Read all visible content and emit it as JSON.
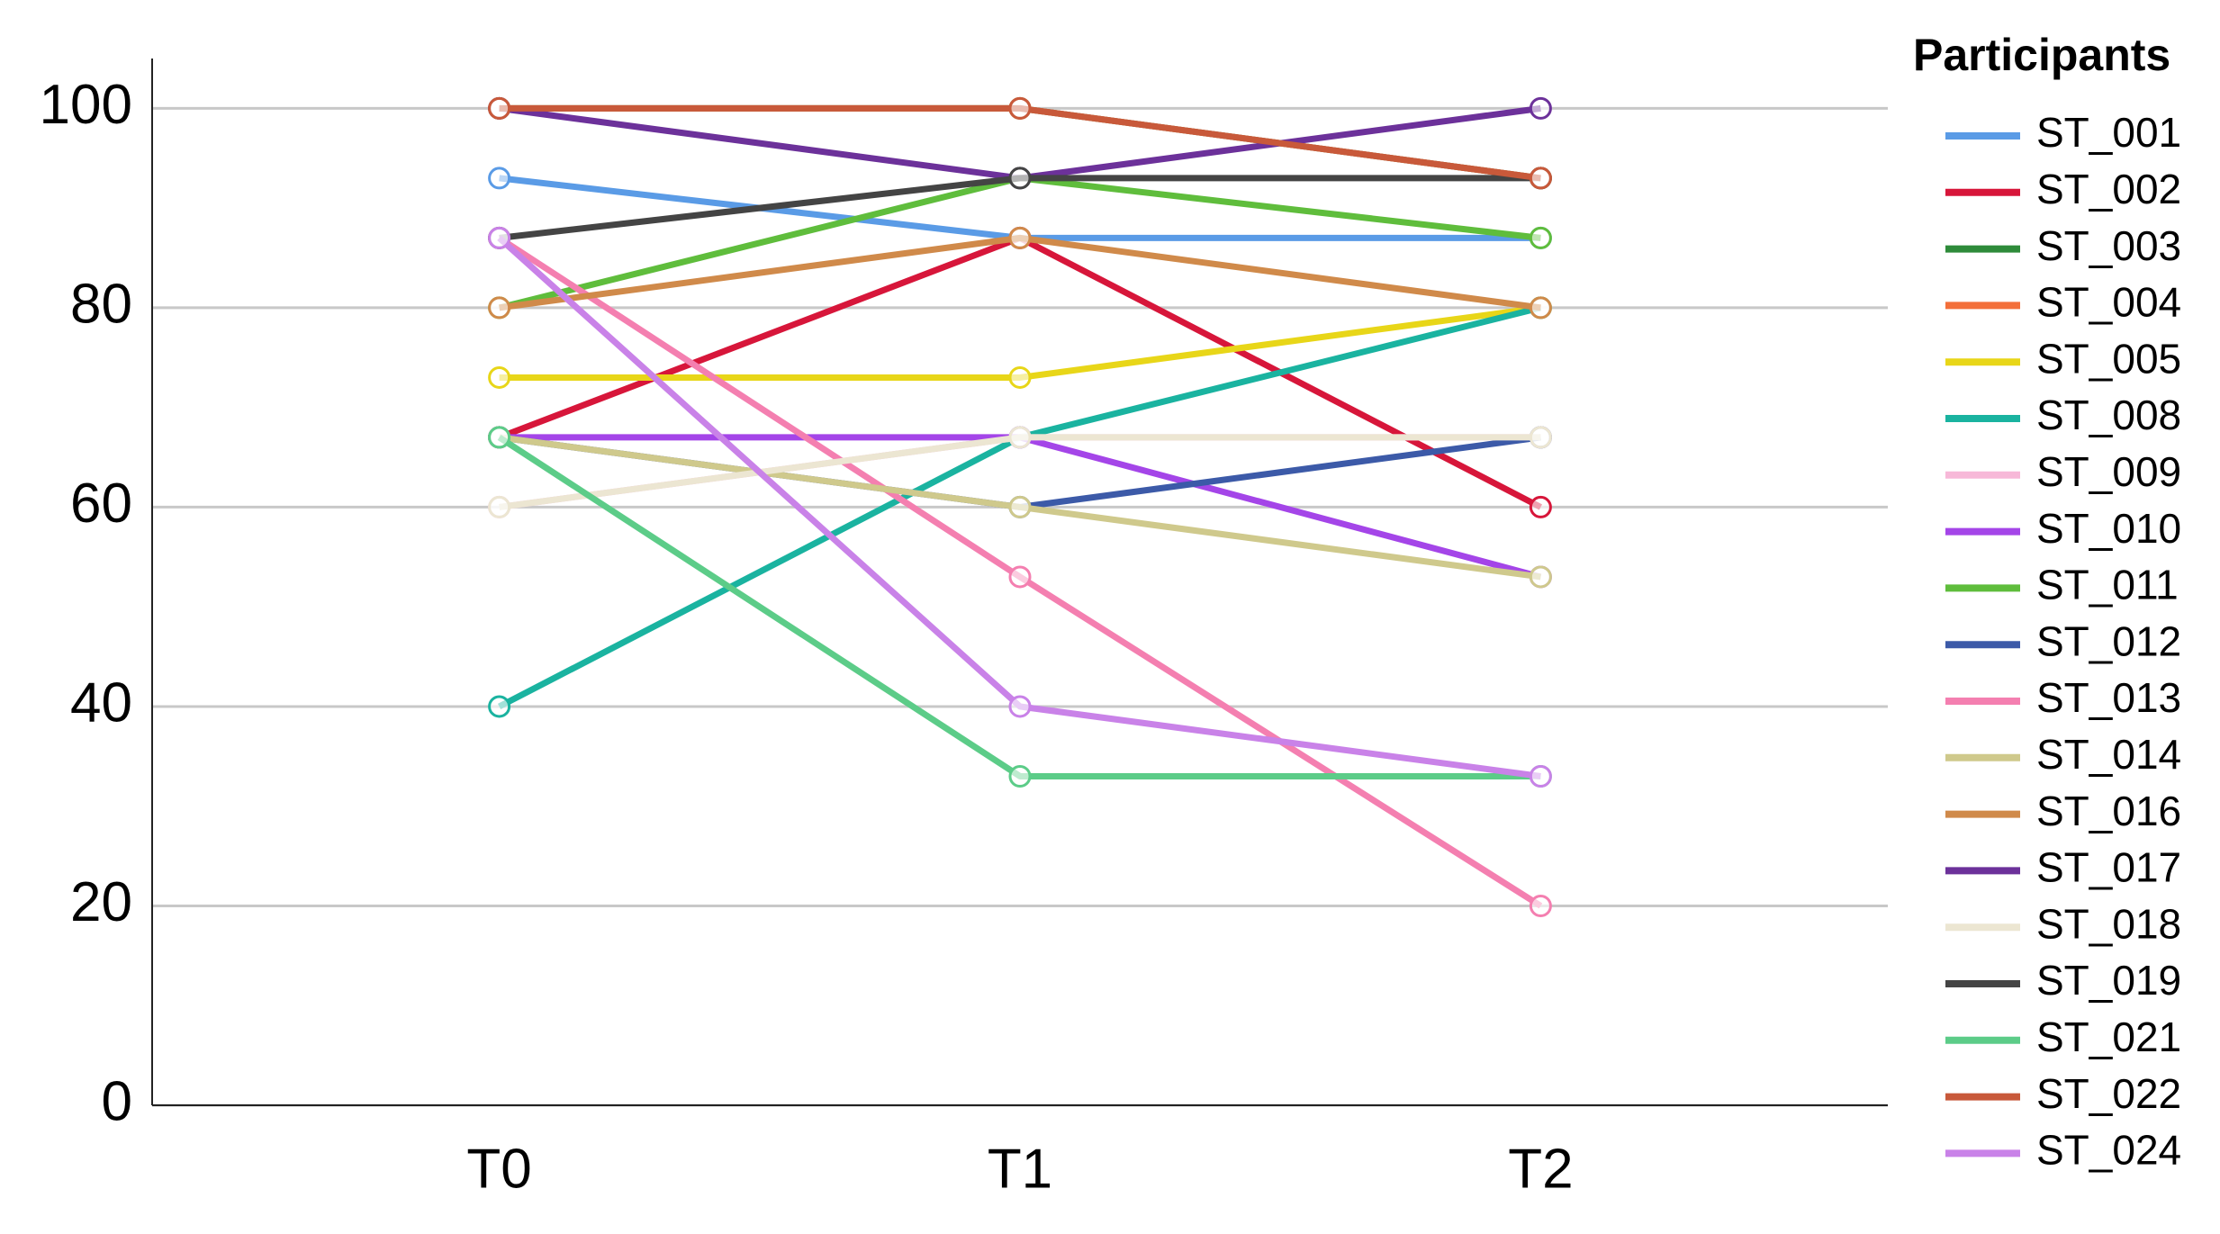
{
  "chart_data": {
    "type": "line",
    "categories": [
      "T0",
      "T1",
      "T2"
    ],
    "ylim": [
      0,
      105
    ],
    "yticks": [
      0,
      20,
      40,
      60,
      80,
      100
    ],
    "grid": true,
    "legend_title": "Participants",
    "legend": "right",
    "series": [
      {
        "name": "ST_001",
        "color": "#5a9be6",
        "values": [
          93,
          87,
          87
        ]
      },
      {
        "name": "ST_002",
        "color": "#d7163a",
        "values": [
          67,
          87,
          60
        ]
      },
      {
        "name": "ST_003",
        "color": "#2e8b3a",
        "values": [
          100,
          100,
          93
        ]
      },
      {
        "name": "ST_004",
        "color": "#f36f3a",
        "values": [
          100,
          100,
          93
        ]
      },
      {
        "name": "ST_005",
        "color": "#e8d618",
        "values": [
          73,
          73,
          80
        ]
      },
      {
        "name": "ST_008",
        "color": "#1ab3a0",
        "values": [
          40,
          67,
          80
        ]
      },
      {
        "name": "ST_009",
        "color": "#f7b8d8",
        "values": [
          60,
          67,
          67
        ]
      },
      {
        "name": "ST_010",
        "color": "#a445e8",
        "values": [
          67,
          67,
          53
        ]
      },
      {
        "name": "ST_011",
        "color": "#5fbd3c",
        "values": [
          80,
          93,
          87
        ]
      },
      {
        "name": "ST_012",
        "color": "#3c5aa8",
        "values": [
          67,
          60,
          67
        ]
      },
      {
        "name": "ST_013",
        "color": "#f47fb0",
        "values": [
          87,
          53,
          20
        ]
      },
      {
        "name": "ST_014",
        "color": "#cfc98c",
        "values": [
          67,
          60,
          53
        ]
      },
      {
        "name": "ST_016",
        "color": "#d08a4a",
        "values": [
          80,
          87,
          80
        ]
      },
      {
        "name": "ST_017",
        "color": "#6c319a",
        "values": [
          100,
          93,
          100
        ]
      },
      {
        "name": "ST_018",
        "color": "#ece6d2",
        "values": [
          60,
          67,
          67
        ]
      },
      {
        "name": "ST_019",
        "color": "#444444",
        "values": [
          87,
          93,
          93
        ]
      },
      {
        "name": "ST_021",
        "color": "#5ccc88",
        "values": [
          67,
          33,
          33
        ]
      },
      {
        "name": "ST_022",
        "color": "#c8593a",
        "values": [
          100,
          100,
          93
        ]
      },
      {
        "name": "ST_024",
        "color": "#c982e8",
        "values": [
          87,
          40,
          33
        ]
      }
    ]
  }
}
